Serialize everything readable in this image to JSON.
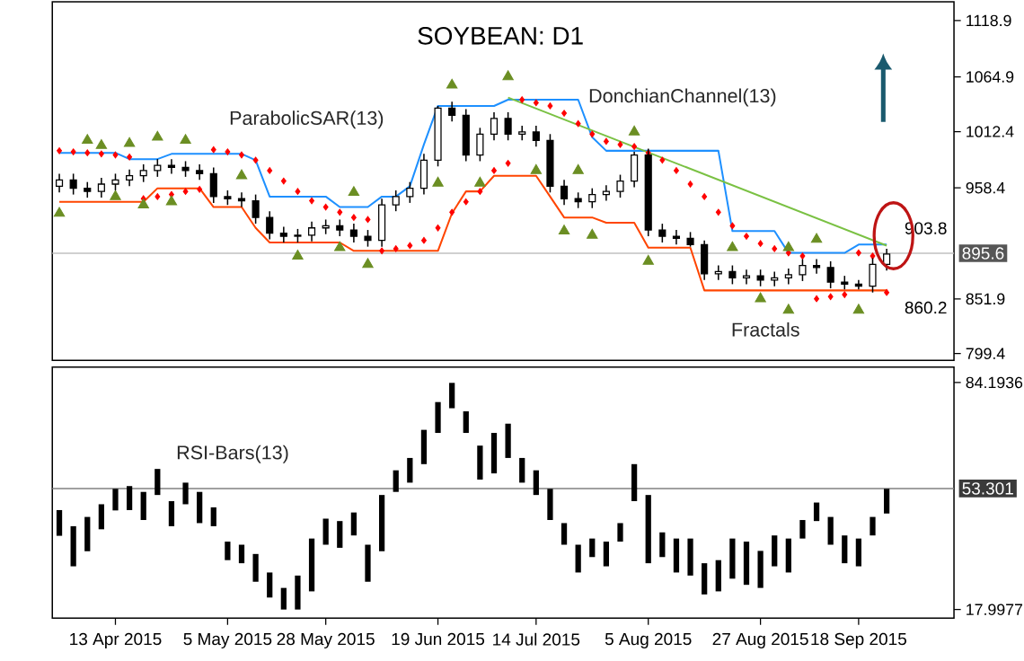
{
  "chart_data": [
    {
      "type": "candlestick",
      "title": "SOYBEAN: D1",
      "categories": [
        null,
        null,
        null,
        null,
        null,
        null,
        null,
        null,
        null,
        null,
        null,
        null,
        null,
        null,
        null,
        null,
        null,
        null,
        null,
        null,
        null,
        null,
        null,
        null,
        null,
        null,
        null,
        null,
        null,
        null,
        null,
        null,
        null,
        null,
        null,
        null,
        null,
        null,
        null,
        null,
        null,
        null,
        null,
        null,
        null,
        null,
        null,
        null,
        null,
        null,
        null,
        null,
        null,
        null,
        null,
        null,
        null,
        null,
        null,
        null
      ],
      "ohlc": [
        [
          960,
          972,
          954,
          966
        ],
        [
          966,
          972,
          952,
          958
        ],
        [
          958,
          964,
          949,
          955
        ],
        [
          955,
          968,
          949,
          962
        ],
        [
          962,
          972,
          956,
          966
        ],
        [
          966,
          976,
          960,
          970
        ],
        [
          970,
          981,
          964,
          975
        ],
        [
          975,
          986,
          969,
          980
        ],
        [
          980,
          986,
          972,
          978
        ],
        [
          978,
          984,
          969,
          975
        ],
        [
          975,
          981,
          966,
          972
        ],
        [
          972,
          978,
          944,
          950
        ],
        [
          950,
          956,
          942,
          948
        ],
        [
          948,
          954,
          940,
          946
        ],
        [
          946,
          952,
          924,
          930
        ],
        [
          930,
          936,
          909,
          915
        ],
        [
          915,
          921,
          906,
          912
        ],
        [
          912,
          919,
          906,
          913
        ],
        [
          913,
          926,
          907,
          920
        ],
        [
          920,
          928,
          914,
          922
        ],
        [
          922,
          928,
          912,
          918
        ],
        [
          918,
          924,
          906,
          912
        ],
        [
          912,
          918,
          902,
          908
        ],
        [
          908,
          948,
          902,
          942
        ],
        [
          942,
          956,
          936,
          950
        ],
        [
          950,
          964,
          944,
          958
        ],
        [
          958,
          991,
          952,
          985
        ],
        [
          985,
          1037,
          979,
          1035
        ],
        [
          1035,
          1041,
          1022,
          1028
        ],
        [
          1028,
          1034,
          984,
          990
        ],
        [
          990,
          1016,
          984,
          1010
        ],
        [
          1010,
          1031,
          1004,
          1025
        ],
        [
          1025,
          1031,
          1004,
          1010
        ],
        [
          1010,
          1018,
          1004,
          1012
        ],
        [
          1012,
          1018,
          998,
          1004
        ],
        [
          1004,
          1010,
          954,
          960
        ],
        [
          960,
          966,
          942,
          948
        ],
        [
          948,
          954,
          939,
          945
        ],
        [
          945,
          958,
          939,
          952
        ],
        [
          952,
          961,
          946,
          955
        ],
        [
          955,
          971,
          949,
          965
        ],
        [
          965,
          993,
          959,
          990
        ],
        [
          990,
          996,
          912,
          918
        ],
        [
          918,
          924,
          906,
          912
        ],
        [
          912,
          918,
          904,
          910
        ],
        [
          910,
          916,
          902,
          904
        ],
        [
          904,
          908,
          870,
          876
        ],
        [
          876,
          884,
          870,
          878
        ],
        [
          878,
          884,
          866,
          872
        ],
        [
          872,
          880,
          866,
          874
        ],
        [
          874,
          880,
          864,
          870
        ],
        [
          870,
          878,
          864,
          872
        ],
        [
          872,
          881,
          866,
          875
        ],
        [
          875,
          890,
          869,
          884
        ],
        [
          884,
          890,
          876,
          882
        ],
        [
          882,
          888,
          862,
          868
        ],
        [
          868,
          874,
          861,
          866
        ],
        [
          866,
          870,
          861,
          864
        ],
        [
          864,
          891,
          858,
          885
        ],
        [
          885,
          900,
          879,
          895
        ]
      ],
      "series": [
        {
          "name": "DonchianChannel(13)",
          "type": "line",
          "color": "#1e90ff",
          "values": [
            992,
            992,
            992,
            992,
            992,
            986,
            986,
            986,
            991,
            991,
            991,
            991,
            991,
            991,
            985,
            950,
            950,
            950,
            950,
            950,
            940,
            940,
            940,
            950,
            950,
            960,
            1000,
            1037,
            1037,
            1037,
            1037,
            1037,
            1043,
            1043,
            1043,
            1043,
            1043,
            1043,
            1007,
            994,
            994,
            994,
            994,
            994,
            994,
            994,
            994,
            994,
            917,
            917,
            917,
            917,
            896,
            896,
            896,
            896,
            896,
            904,
            904,
            904
          ]
        },
        {
          "type": "line",
          "color": "#ff4500",
          "values": [
            945,
            945,
            945,
            945,
            945,
            945,
            945,
            958,
            958,
            958,
            958,
            940,
            940,
            940,
            920,
            906,
            906,
            906,
            906,
            906,
            906,
            898,
            898,
            898,
            898,
            898,
            898,
            898,
            934,
            955,
            955,
            970,
            970,
            970,
            970,
            950,
            930,
            930,
            930,
            925,
            925,
            925,
            901,
            901,
            901,
            901,
            860,
            860,
            860,
            860,
            860,
            860,
            860,
            860,
            860,
            860,
            860,
            860,
            860,
            860
          ]
        },
        {
          "type": "line",
          "color": "#7ac143",
          "values": [
            null,
            null,
            null,
            null,
            null,
            null,
            null,
            null,
            null,
            null,
            null,
            null,
            null,
            null,
            null,
            null,
            null,
            null,
            null,
            null,
            null,
            null,
            null,
            null,
            null,
            null,
            null,
            null,
            null,
            null,
            null,
            null,
            1045,
            null,
            null,
            null,
            null,
            null,
            null,
            null,
            null,
            null,
            null,
            null,
            null,
            null,
            null,
            null,
            null,
            null,
            null,
            null,
            null,
            null,
            null,
            null,
            null,
            null,
            null,
            903
          ]
        },
        {
          "name": "ParabolicSAR(13)",
          "type": "scatter",
          "marker": "diamond",
          "color": "#ff0000",
          "values": [
            994,
            993,
            992,
            991,
            990,
            988,
            948,
            950,
            952,
            955,
            957,
            995,
            993,
            990,
            985,
            975,
            965,
            955,
            946,
            940,
            935,
            930,
            928,
            898,
            900,
            903,
            908,
            920,
            935,
            945,
            955,
            975,
            982,
            1043,
            1040,
            1037,
            1030,
            1020,
            1010,
            1003,
            1000,
            998,
            992,
            985,
            975,
            962,
            950,
            935,
            922,
            912,
            905,
            900,
            896,
            893,
            852,
            854,
            856,
            896,
            893,
            858
          ]
        },
        {
          "type": "scatter",
          "marker": "triangle",
          "color": "#6b8e23",
          "values": [
            null,
            null,
            1004,
            999,
            null,
            1001,
            null,
            1007,
            null,
            1004,
            null,
            null,
            null,
            970,
            null,
            null,
            null,
            null,
            null,
            null,
            null,
            954,
            null,
            null,
            null,
            null,
            null,
            null,
            1057,
            null,
            null,
            null,
            1065,
            null,
            null,
            null,
            null,
            975,
            null,
            null,
            null,
            1012,
            null,
            null,
            null,
            null,
            null,
            null,
            901,
            null,
            null,
            null,
            901,
            null,
            909,
            null,
            null,
            null,
            null,
            null
          ]
        },
        {
          "name": "Fractals",
          "type": "scatter",
          "marker": "triangle",
          "color": "#6b8e23",
          "values": [
            934,
            null,
            null,
            null,
            950,
            null,
            942,
            null,
            945,
            null,
            null,
            null,
            null,
            null,
            null,
            null,
            null,
            893,
            null,
            null,
            901,
            null,
            885,
            null,
            null,
            null,
            null,
            963,
            null,
            null,
            963,
            null,
            null,
            null,
            975,
            null,
            917,
            null,
            913,
            null,
            null,
            null,
            888,
            null,
            null,
            null,
            null,
            null,
            null,
            null,
            852,
            null,
            841,
            null,
            null,
            null,
            null,
            841,
            null,
            null
          ]
        }
      ],
      "ylim": [
        793,
        1137
      ],
      "yticks": [
        799.4,
        851.9,
        958.4,
        1012.4,
        1064.9,
        1118.9
      ],
      "ref_lines": [
        {
          "axis": "y",
          "value": 895.6,
          "label": "895.6",
          "color": "#c0c0c0"
        }
      ],
      "annotations": [
        "903.8",
        "860.2"
      ],
      "tick_labels": "y"
    },
    {
      "type": "bar",
      "categories": [
        null,
        null,
        null,
        null,
        "13 Apr 2015",
        null,
        null,
        null,
        null,
        null,
        null,
        null,
        "5 May 2015",
        null,
        null,
        null,
        null,
        null,
        null,
        "28 May 2015",
        null,
        null,
        null,
        null,
        null,
        null,
        null,
        "19 Jun 2015",
        null,
        null,
        null,
        null,
        null,
        null,
        "14 Jul 2015",
        null,
        null,
        null,
        null,
        null,
        null,
        null,
        "5 Aug 2015",
        null,
        null,
        null,
        null,
        null,
        null,
        null,
        "27 Aug 2015",
        null,
        null,
        null,
        null,
        null,
        null,
        "18 Sep 2015",
        null,
        null
      ],
      "series": [
        {
          "name": "RSI-Bars(13)",
          "color": "#000000",
          "base": [
            39.5,
            30.6,
            35,
            41.4,
            46.9,
            47,
            44.1,
            51.4,
            42.3,
            48.7,
            43.2,
            42.3,
            32.4,
            31.5,
            26.1,
            21.5,
            18,
            18,
            23.3,
            36.9,
            36,
            39.6,
            26.1,
            35,
            52.3,
            55,
            60.4,
            69.5,
            76.7,
            69.5,
            55.9,
            57.7,
            62.2,
            55,
            51.4,
            44.1,
            36.9,
            28.8,
            33.3,
            30.6,
            37.8,
            49.6,
            31.5,
            33.3,
            28.8,
            27.9,
            22.4,
            23.3,
            27,
            25.2,
            24.3,
            30.6,
            28.8,
            38.7,
            43.8,
            36.9,
            31.5,
            30.6,
            39.6,
            46
          ],
          "values": [
            7.5,
            11.7,
            10,
            7.3,
            6.3,
            7,
            8.2,
            7.6,
            7.3,
            6.3,
            9.1,
            5.5,
            5.4,
            5.4,
            8.1,
            7.3,
            6.3,
            9.9,
            15.4,
            7.6,
            7.8,
            6.7,
            10.8,
            16.4,
            6.3,
            7.2,
            10,
            9,
            7.4,
            6.3,
            9.9,
            11.8,
            10,
            7.2,
            7.2,
            9.1,
            6.3,
            8.1,
            5.4,
            7.2,
            5.4,
            10.8,
            19.9,
            7.2,
            9.9,
            10.8,
            9.1,
            9.1,
            11.7,
            12.6,
            10.8,
            9,
            9.9,
            5.4,
            5.4,
            8.1,
            8.1,
            8.1,
            5.4,
            7.2
          ]
        }
      ],
      "ylim": [
        15.5,
        88.7
      ],
      "yticks": [
        17.9977,
        84.1936
      ],
      "ref_lines": [
        {
          "axis": "y",
          "value": 53.301,
          "label": "53.301",
          "color": "#808080"
        }
      ]
    }
  ]
}
